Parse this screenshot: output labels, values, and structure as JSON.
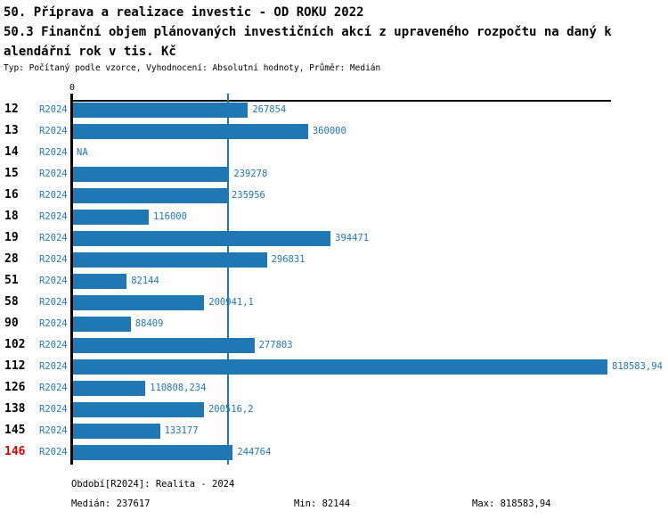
{
  "header": {
    "title_line1": "50. Příprava a realizace investic - OD ROKU 2022",
    "title_line2": "50.3 Finanční objem plánovaných investičních akcí z upraveného rozpočtu na daný k",
    "title_line3": "alendářní rok v tis. Kč",
    "subtitle": "Typ: Počítaný podle vzorce, Vyhodnocení: Absolutní hodnoty, Průměr: Medián"
  },
  "chart_data": {
    "type": "bar",
    "orientation": "horizontal",
    "title": "50.3 Finanční objem plánovaných investičních akcí z upraveného rozpočtu na daný kalendářní rok v tis. Kč",
    "axis_zero_label": "0",
    "series_label": "R2024",
    "categories": [
      "12",
      "13",
      "14",
      "15",
      "16",
      "18",
      "19",
      "28",
      "51",
      "58",
      "90",
      "102",
      "112",
      "126",
      "138",
      "145",
      "146"
    ],
    "values": [
      267854,
      360000,
      null,
      239278,
      235956,
      116000,
      394471,
      296831,
      82144,
      200941.1,
      88409,
      277803,
      818583.94,
      110808.234,
      200516.2,
      133177,
      244764
    ],
    "value_labels": [
      "267854",
      "360000",
      "NA",
      "239278",
      "235956",
      "116000",
      "394471",
      "296831",
      "82144",
      "200941,1",
      "88409",
      "277803",
      "818583,94",
      "110808,234",
      "200516,2",
      "133177",
      "244764"
    ],
    "na_label": "NA",
    "highlighted_category": "146",
    "median_value": 237617,
    "xlim": [
      0,
      823000
    ],
    "grid": false,
    "legend_position": "none",
    "colors": {
      "bar": "#1f77b4",
      "value_text": "#1f77b4",
      "series_text": "#1f77b4",
      "category_text": "#000000",
      "highlight_text": "#dd0000",
      "median_line": "#1f77b4",
      "axis": "#000000"
    }
  },
  "footer": {
    "period": "Období[R2024]: Realita - 2024",
    "median": "Medián: 237617",
    "min": "Min: 82144",
    "max": "Max: 818583,94"
  }
}
